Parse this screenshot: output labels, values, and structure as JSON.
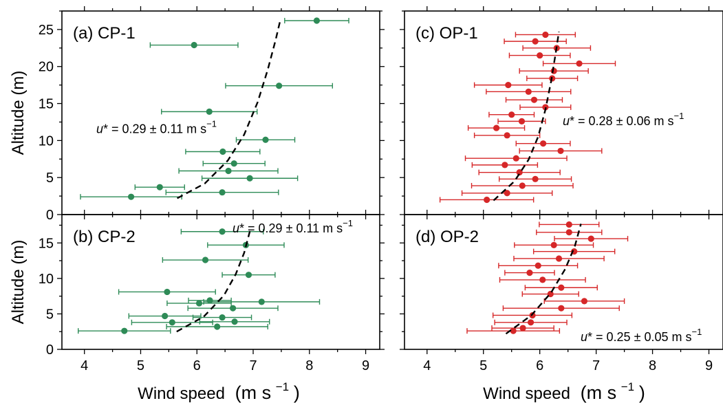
{
  "figure": {
    "xlabel": "Wind speed",
    "xunit": "(m s",
    "xunit_exp": "−1",
    "xunit_close": ")"
  },
  "colors": {
    "cp": "#2e8b57",
    "op": "#d62728",
    "fit": "#000000"
  },
  "chart_data": [
    {
      "type": "scatter",
      "panel": "a",
      "label": "(a) CP-1",
      "ylabel": "Altitude (m)",
      "xlim": [
        3.6,
        9.25
      ],
      "ylim": [
        0,
        27.5
      ],
      "xticks": [
        4,
        5,
        6,
        7,
        8,
        9
      ],
      "yticks": [
        0,
        5,
        10,
        15,
        20,
        25
      ],
      "color": "cp",
      "ustar": {
        "text": "u* = 0.29 ± 0.11 m s",
        "exp": "−1",
        "placement": "middle-left"
      },
      "points": [
        {
          "x": 8.13,
          "y": 26.2,
          "xerr": 0.57
        },
        {
          "x": 5.95,
          "y": 22.9,
          "xerr": 0.78
        },
        {
          "x": 7.46,
          "y": 17.4,
          "xerr": 0.95
        },
        {
          "x": 6.22,
          "y": 13.9,
          "xerr": 0.85
        },
        {
          "x": 7.22,
          "y": 10.1,
          "xerr": 0.52
        },
        {
          "x": 6.46,
          "y": 8.5,
          "xerr": 0.66
        },
        {
          "x": 6.66,
          "y": 6.9,
          "xerr": 0.55
        },
        {
          "x": 6.56,
          "y": 5.9,
          "xerr": 0.88
        },
        {
          "x": 6.94,
          "y": 4.9,
          "xerr": 0.85
        },
        {
          "x": 5.34,
          "y": 3.7,
          "xerr": 0.44
        },
        {
          "x": 6.45,
          "y": 3.0,
          "xerr": 1.0
        },
        {
          "x": 4.83,
          "y": 2.4,
          "xerr": 0.9
        }
      ],
      "fit": [
        [
          5.65,
          2.2
        ],
        [
          6.14,
          4.2
        ],
        [
          6.55,
          7.3
        ],
        [
          6.84,
          10.8
        ],
        [
          7.08,
          15.2
        ],
        [
          7.26,
          19.6
        ],
        [
          7.4,
          23.6
        ],
        [
          7.48,
          26.2
        ]
      ]
    },
    {
      "type": "scatter",
      "panel": "b",
      "label": "(b) CP-2",
      "ylabel": "Altitude (m)",
      "xlim": [
        3.6,
        9.25
      ],
      "ylim": [
        0,
        19.0
      ],
      "xticks": [
        4,
        5,
        6,
        7,
        8,
        9
      ],
      "yticks": [
        0,
        5,
        10,
        15
      ],
      "color": "cp",
      "ustar": {
        "text": "u* = 0.29 ± 0.11 m s",
        "exp": "−1",
        "placement": "top-right"
      },
      "points": [
        {
          "x": 6.45,
          "y": 16.6,
          "xerr": 0.73
        },
        {
          "x": 6.87,
          "y": 14.7,
          "xerr": 0.68
        },
        {
          "x": 6.15,
          "y": 12.6,
          "xerr": 0.76
        },
        {
          "x": 6.92,
          "y": 10.5,
          "xerr": 0.47
        },
        {
          "x": 5.47,
          "y": 8.1,
          "xerr": 0.86
        },
        {
          "x": 6.23,
          "y": 6.9,
          "xerr": 0.38
        },
        {
          "x": 6.04,
          "y": 6.5,
          "xerr": 0.57
        },
        {
          "x": 7.15,
          "y": 6.7,
          "xerr": 1.03
        },
        {
          "x": 6.64,
          "y": 5.8,
          "xerr": 0.8
        },
        {
          "x": 5.43,
          "y": 4.7,
          "xerr": 0.64
        },
        {
          "x": 6.45,
          "y": 4.5,
          "xerr": 0.52
        },
        {
          "x": 5.56,
          "y": 3.8,
          "xerr": 0.72
        },
        {
          "x": 6.67,
          "y": 3.9,
          "xerr": 0.62
        },
        {
          "x": 6.36,
          "y": 3.2,
          "xerr": 0.9
        },
        {
          "x": 4.71,
          "y": 2.6,
          "xerr": 0.82
        }
      ],
      "fit": [
        [
          5.64,
          2.5
        ],
        [
          6.12,
          4.6
        ],
        [
          6.48,
          7.6
        ],
        [
          6.69,
          10.6
        ],
        [
          6.84,
          13.6
        ],
        [
          6.95,
          16.9
        ]
      ]
    },
    {
      "type": "scatter",
      "panel": "c",
      "label": "(c) OP-1",
      "ylabel": "",
      "xlim": [
        3.6,
        9.25
      ],
      "ylim": [
        0,
        27.5
      ],
      "xticks": [
        4,
        5,
        6,
        7,
        8,
        9
      ],
      "yticks": [
        0,
        5,
        10,
        15,
        20,
        25
      ],
      "color": "op",
      "ustar": {
        "text": "u* = 0.28 ± 0.06 m s",
        "exp": "−1",
        "placement": "middle-right"
      },
      "points": [
        {
          "x": 6.1,
          "y": 24.3,
          "xerr": 0.53
        },
        {
          "x": 5.92,
          "y": 23.4,
          "xerr": 0.55
        },
        {
          "x": 6.3,
          "y": 22.5,
          "xerr": 0.6
        },
        {
          "x": 6.0,
          "y": 21.5,
          "xerr": 0.54
        },
        {
          "x": 6.7,
          "y": 20.4,
          "xerr": 0.64
        },
        {
          "x": 6.25,
          "y": 19.4,
          "xerr": 0.61
        },
        {
          "x": 6.22,
          "y": 18.4,
          "xerr": 0.45
        },
        {
          "x": 5.44,
          "y": 17.5,
          "xerr": 0.6
        },
        {
          "x": 5.8,
          "y": 16.6,
          "xerr": 0.75
        },
        {
          "x": 5.9,
          "y": 15.5,
          "xerr": 0.5
        },
        {
          "x": 6.1,
          "y": 14.5,
          "xerr": 0.45
        },
        {
          "x": 5.5,
          "y": 13.5,
          "xerr": 0.4
        },
        {
          "x": 5.68,
          "y": 12.6,
          "xerr": 0.42
        },
        {
          "x": 5.23,
          "y": 11.7,
          "xerr": 0.5
        },
        {
          "x": 5.42,
          "y": 10.7,
          "xerr": 0.58
        },
        {
          "x": 6.06,
          "y": 9.6,
          "xerr": 0.48
        },
        {
          "x": 6.37,
          "y": 8.6,
          "xerr": 0.73
        },
        {
          "x": 5.58,
          "y": 7.6,
          "xerr": 0.9
        },
        {
          "x": 5.38,
          "y": 6.7,
          "xerr": 0.58
        },
        {
          "x": 5.64,
          "y": 5.7,
          "xerr": 0.72
        },
        {
          "x": 5.92,
          "y": 4.8,
          "xerr": 0.64
        },
        {
          "x": 5.69,
          "y": 3.9,
          "xerr": 0.9
        },
        {
          "x": 5.42,
          "y": 2.9,
          "xerr": 0.8
        },
        {
          "x": 5.06,
          "y": 2.0,
          "xerr": 0.83
        }
      ],
      "fit": [
        [
          5.18,
          1.9
        ],
        [
          5.55,
          4.5
        ],
        [
          5.8,
          7.4
        ],
        [
          5.97,
          10.5
        ],
        [
          6.1,
          14.2
        ],
        [
          6.2,
          18.0
        ],
        [
          6.28,
          21.7
        ],
        [
          6.34,
          24.7
        ]
      ]
    },
    {
      "type": "scatter",
      "panel": "d",
      "label": "(d) OP-2",
      "ylabel": "",
      "xlim": [
        3.6,
        9.25
      ],
      "ylim": [
        0,
        19.0
      ],
      "xticks": [
        4,
        5,
        6,
        7,
        8,
        9
      ],
      "yticks": [
        0,
        5,
        10,
        15
      ],
      "color": "op",
      "ustar": {
        "text": "u* = 0.25 ± 0.05 m s",
        "exp": "−1",
        "placement": "bottom-right"
      },
      "points": [
        {
          "x": 6.52,
          "y": 17.6,
          "xerr": 0.53
        },
        {
          "x": 6.52,
          "y": 16.5,
          "xerr": 0.58
        },
        {
          "x": 6.91,
          "y": 15.6,
          "xerr": 0.65
        },
        {
          "x": 6.25,
          "y": 14.7,
          "xerr": 0.7
        },
        {
          "x": 6.61,
          "y": 13.8,
          "xerr": 0.72
        },
        {
          "x": 6.34,
          "y": 12.8,
          "xerr": 0.8
        },
        {
          "x": 5.97,
          "y": 11.8,
          "xerr": 0.7
        },
        {
          "x": 5.82,
          "y": 10.8,
          "xerr": 0.44
        },
        {
          "x": 6.05,
          "y": 9.8,
          "xerr": 0.76
        },
        {
          "x": 6.38,
          "y": 8.7,
          "xerr": 0.64
        },
        {
          "x": 6.19,
          "y": 7.8,
          "xerr": 0.5
        },
        {
          "x": 6.79,
          "y": 6.8,
          "xerr": 0.71
        },
        {
          "x": 6.38,
          "y": 5.8,
          "xerr": 1.03
        },
        {
          "x": 5.87,
          "y": 4.8,
          "xerr": 0.7
        },
        {
          "x": 5.84,
          "y": 3.8,
          "xerr": 0.64
        },
        {
          "x": 5.7,
          "y": 3.0,
          "xerr": 0.55
        },
        {
          "x": 5.53,
          "y": 2.6,
          "xerr": 0.82
        }
      ],
      "fit": [
        [
          5.4,
          2.2
        ],
        [
          5.85,
          4.8
        ],
        [
          6.2,
          8.0
        ],
        [
          6.45,
          11.3
        ],
        [
          6.62,
          14.5
        ],
        [
          6.73,
          17.7
        ]
      ]
    }
  ]
}
